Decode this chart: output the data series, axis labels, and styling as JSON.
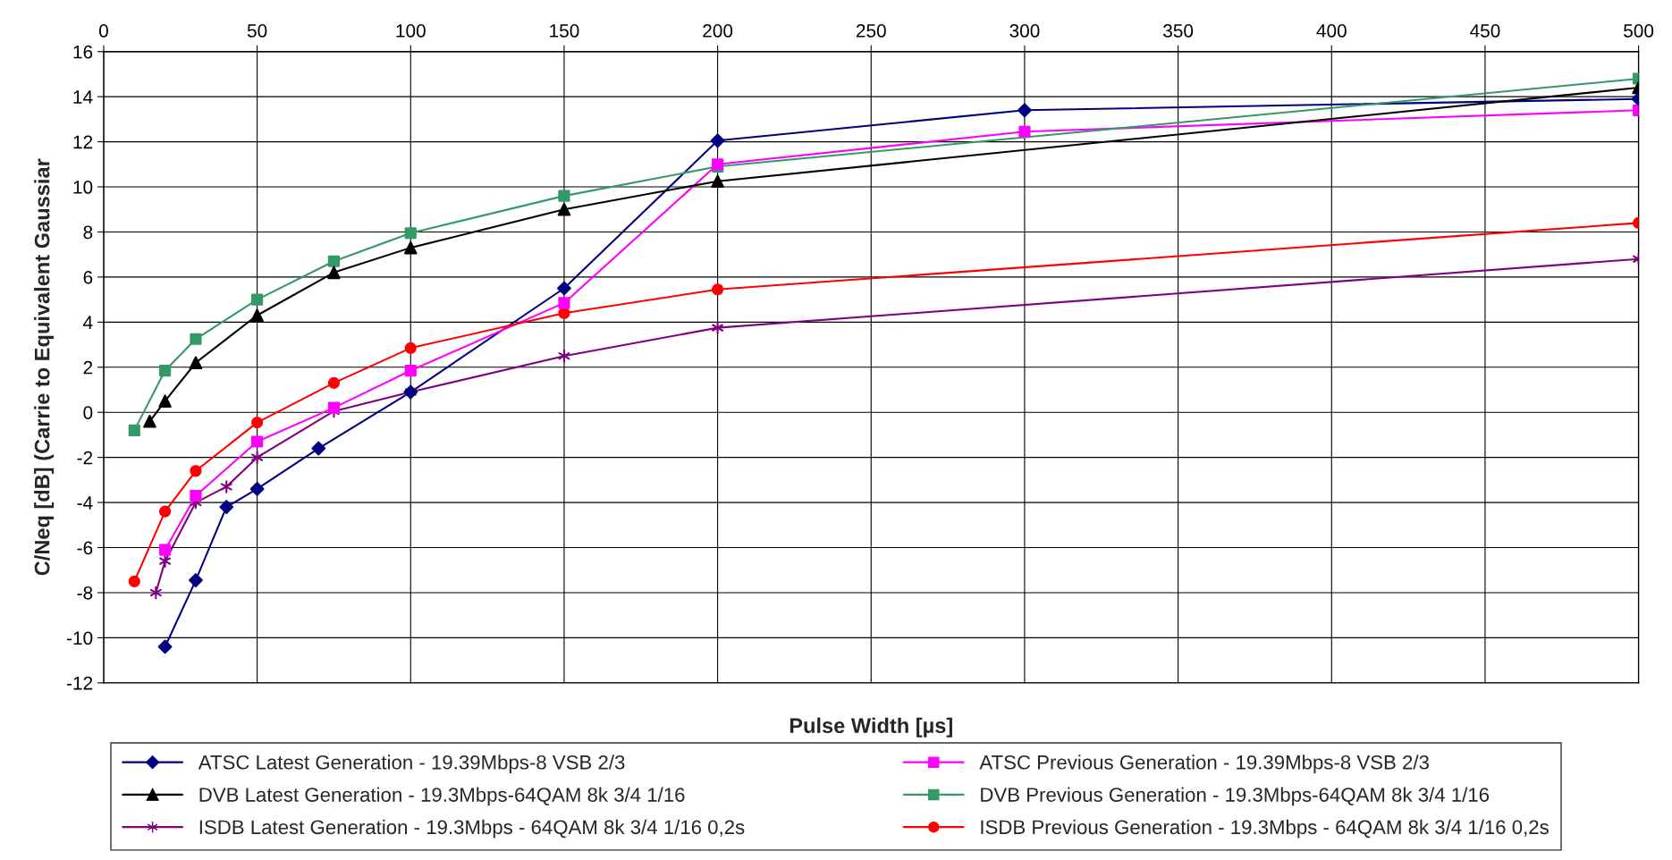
{
  "chart_data": {
    "type": "line",
    "xlabel": "Pulse Width [µs]",
    "ylabel": "C/Neq [dB] (Carrie to Equivalent Gaussiar",
    "xlim": [
      0,
      500
    ],
    "xticks": [
      0,
      50,
      100,
      150,
      200,
      250,
      300,
      350,
      400,
      450,
      500
    ],
    "ylim": [
      -12,
      16
    ],
    "yticks": [
      -12,
      -10,
      -8,
      -6,
      -4,
      -2,
      0,
      2,
      4,
      6,
      8,
      10,
      12,
      14,
      16
    ],
    "grid": true,
    "legend": "bottom",
    "series": [
      {
        "name": "ATSC Latest Generation - 19.39Mbps-8 VSB 2/3",
        "color": "#000080",
        "marker": "diamond",
        "x": [
          20,
          30,
          40,
          50,
          70,
          100,
          150,
          200,
          300,
          500
        ],
        "values": [
          -10.4,
          -7.45,
          -4.2,
          -3.4,
          -1.6,
          0.9,
          5.5,
          12.05,
          13.4,
          13.9
        ]
      },
      {
        "name": "ATSC Previous Generation - 19.39Mbps-8 VSB 2/3",
        "color": "#ff00ff",
        "marker": "square",
        "x": [
          20,
          30,
          50,
          75,
          100,
          150,
          200,
          300,
          500
        ],
        "values": [
          -6.1,
          -3.7,
          -1.3,
          0.2,
          1.85,
          4.85,
          11.0,
          12.45,
          13.4
        ]
      },
      {
        "name": "DVB Latest Generation - 19.3Mbps-64QAM 8k 3/4 1/16",
        "color": "#000000",
        "marker": "triangle",
        "x": [
          15,
          20,
          30,
          50,
          75,
          100,
          150,
          200,
          500
        ],
        "values": [
          -0.4,
          0.5,
          2.2,
          4.3,
          6.2,
          7.3,
          9.0,
          10.25,
          14.4
        ]
      },
      {
        "name": "DVB Previous Generation - 19.3Mbps-64QAM 8k 3/4 1/16",
        "color": "#339966",
        "marker": "square",
        "x": [
          10,
          20,
          30,
          50,
          75,
          100,
          150,
          200,
          500
        ],
        "values": [
          -0.8,
          1.85,
          3.25,
          5.0,
          6.7,
          7.95,
          9.6,
          10.9,
          14.8
        ]
      },
      {
        "name": "ISDB Latest Generation - 19.3Mbps - 64QAM 8k 3/4 1/16 0,2s",
        "color": "#800080",
        "marker": "cross",
        "x": [
          17,
          20,
          30,
          40,
          50,
          75,
          100,
          150,
          200,
          500
        ],
        "values": [
          -8.0,
          -6.6,
          -4.0,
          -3.3,
          -2.0,
          0.05,
          0.9,
          2.5,
          3.75,
          6.8
        ]
      },
      {
        "name": "ISDB Previous Generation - 19.3Mbps - 64QAM 8k 3/4 1/16 0,2s",
        "color": "#ff0000",
        "marker": "circle",
        "x": [
          10,
          20,
          30,
          50,
          75,
          100,
          150,
          200,
          500
        ],
        "values": [
          -7.5,
          -4.4,
          -2.6,
          -0.45,
          1.3,
          2.85,
          4.4,
          5.45,
          8.4
        ]
      }
    ]
  }
}
